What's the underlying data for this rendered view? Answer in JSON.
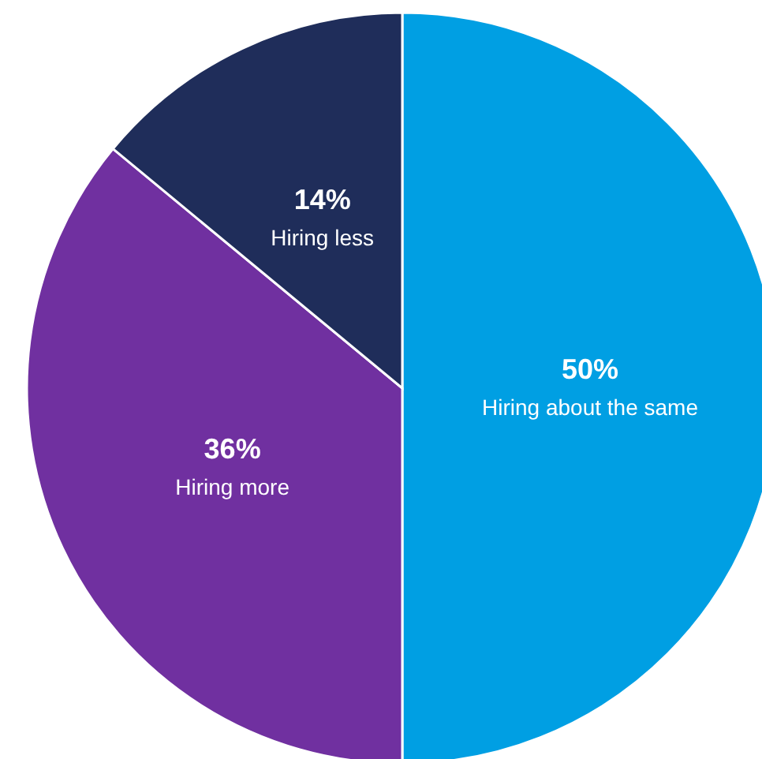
{
  "chart_data": {
    "type": "pie",
    "categories": [
      "Hiring about the same",
      "Hiring more",
      "Hiring less"
    ],
    "values": [
      50,
      36,
      14
    ],
    "colors": [
      "#009fe3",
      "#7030a0",
      "#1f2d5a"
    ],
    "value_labels": [
      "50%",
      "36%",
      "14%"
    ],
    "legend": false
  }
}
